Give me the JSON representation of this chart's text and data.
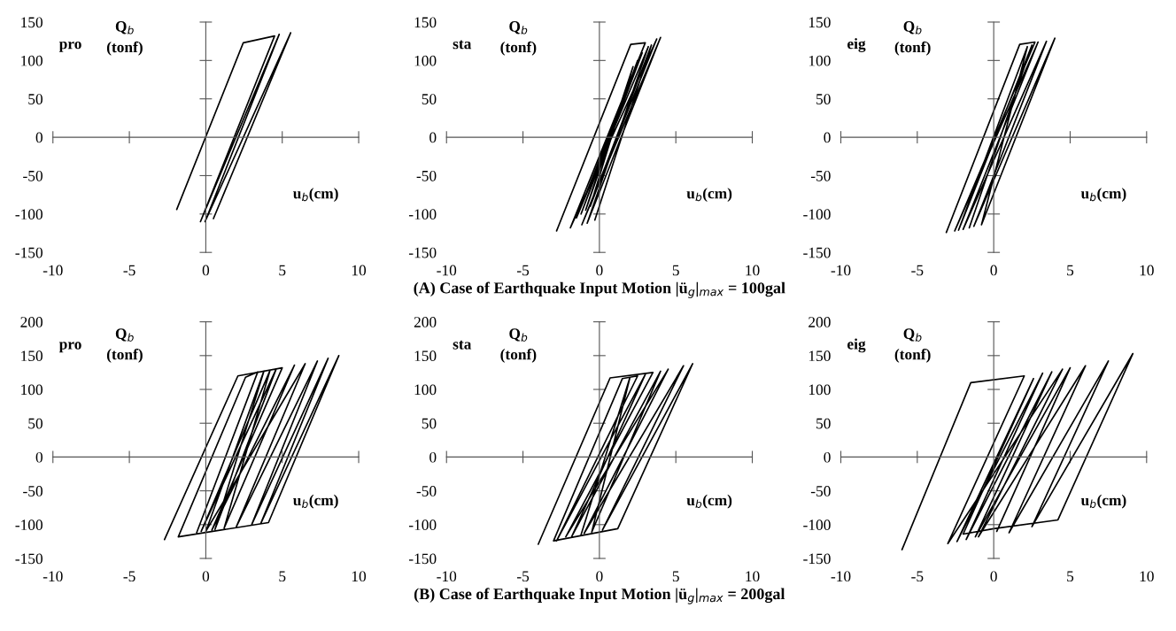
{
  "chart_data": [
    {
      "type": "line",
      "title": "pro",
      "xlabel": "u$_{b}$(cm)",
      "ylabel": "Q$_{b}$\n(tonf)",
      "xlim": [
        -10,
        10
      ],
      "ylim": [
        -150,
        150
      ],
      "xticks": [
        -10,
        -5,
        0,
        5,
        10
      ],
      "yticks": [
        -150,
        -100,
        -50,
        0,
        50,
        100,
        150
      ],
      "marker": "none",
      "line_style": "solid",
      "series": [
        {
          "color": "#000000",
          "x": [
            -1.9,
            2.45,
            4.5,
            -0.35,
            4.8,
            -0.05,
            5.55,
            0.5
          ],
          "values": [
            -94,
            123,
            132,
            -110,
            134,
            -110,
            136,
            -106
          ]
        }
      ]
    },
    {
      "type": "line",
      "title": "sta",
      "xlabel": "u$_{b}$(cm)",
      "ylabel": "Q$_{b}$\n(tonf)",
      "xlim": [
        -10,
        10
      ],
      "ylim": [
        -150,
        150
      ],
      "xticks": [
        -10,
        -5,
        0,
        5,
        10
      ],
      "yticks": [
        -150,
        -100,
        -50,
        0,
        50,
        100,
        150
      ],
      "marker": "none",
      "line_style": "solid",
      "annotations": [
        "(A) Case of Earthquake Input Motion |ü$_{g}$|$_{max}$ = 100gal"
      ],
      "series": [
        {
          "color": "#000000",
          "x": [
            -2.8,
            2.05,
            3.0,
            -1.9,
            3.75,
            -1.15,
            4.0,
            -0.8,
            3.2,
            -1.5,
            2.8,
            -1.2,
            2.5,
            -0.9,
            2.2,
            -0.6,
            3.4,
            -0.3
          ],
          "values": [
            -122,
            121,
            123,
            -118,
            128,
            -114,
            130,
            -112,
            118,
            -105,
            110,
            -100,
            100,
            -95,
            92,
            -90,
            120,
            -108
          ]
        }
      ]
    },
    {
      "type": "line",
      "title": "eig",
      "xlabel": "u$_{b}$(cm)",
      "ylabel": "Q$_{b}$\n(tonf)",
      "xlim": [
        -10,
        10
      ],
      "ylim": [
        -150,
        150
      ],
      "xticks": [
        -10,
        -5,
        0,
        5,
        10
      ],
      "yticks": [
        -150,
        -100,
        -50,
        0,
        50,
        100,
        150
      ],
      "marker": "none",
      "line_style": "solid",
      "series": [
        {
          "color": "#000000",
          "x": [
            -3.1,
            1.7,
            2.7,
            -2.55,
            2.9,
            -2.0,
            3.45,
            -1.3,
            4.0,
            -0.8,
            2.2,
            -2.3,
            2.5,
            -1.6
          ],
          "values": [
            -124,
            121,
            124,
            -122,
            124,
            -120,
            125,
            -116,
            129,
            -114,
            118,
            -121,
            120,
            -118
          ]
        }
      ]
    },
    {
      "type": "line",
      "title": "pro",
      "xlabel": "u$_{b}$(cm)",
      "ylabel": "Q$_{b}$\n(tonf)",
      "xlim": [
        -10,
        10
      ],
      "ylim": [
        -150,
        200
      ],
      "xticks": [
        -10,
        -5,
        0,
        5,
        10
      ],
      "yticks": [
        -150,
        -100,
        -50,
        0,
        50,
        100,
        150,
        200
      ],
      "marker": "none",
      "line_style": "solid",
      "series": [
        {
          "color": "#000000",
          "x": [
            -2.7,
            2.1,
            5.0,
            0.4,
            5.8,
            1.2,
            4.2,
            -0.3,
            4.6,
            0.6,
            3.8,
            0.0,
            6.5,
            2.0,
            7.3,
            3.0,
            8.0,
            3.6,
            8.7,
            4.1,
            -1.8,
            2.6,
            3.4,
            -0.6
          ],
          "values": [
            -122,
            120,
            132,
            -108,
            136,
            -105,
            128,
            -110,
            130,
            -107,
            127,
            -110,
            138,
            -103,
            142,
            -100,
            146,
            -98,
            150,
            -97,
            -118,
            118,
            126,
            -112
          ]
        }
      ]
    },
    {
      "type": "line",
      "title": "sta",
      "xlabel": "u$_{b}$(cm)",
      "ylabel": "Q$_{b}$\n(tonf)",
      "xlim": [
        -10,
        10
      ],
      "ylim": [
        -150,
        200
      ],
      "xticks": [
        -10,
        -5,
        0,
        5,
        10
      ],
      "yticks": [
        -150,
        -100,
        -50,
        0,
        50,
        100,
        150,
        200
      ],
      "marker": "none",
      "line_style": "solid",
      "annotations": [
        "(B) Case of Earthquake Input Motion |ü$_{g}$|$_{max}$ = 200gal"
      ],
      "series": [
        {
          "color": "#000000",
          "x": [
            -4.0,
            0.7,
            3.5,
            -2.2,
            4.5,
            -1.0,
            5.5,
            0.2,
            6.1,
            1.2,
            -3.0,
            1.5,
            2.5,
            -2.8,
            3.0,
            -1.8,
            4.0,
            -0.5,
            2.0,
            -1.2
          ],
          "values": [
            -129,
            117,
            125,
            -118,
            130,
            -113,
            135,
            -108,
            138,
            -106,
            -124,
            116,
            120,
            -124,
            122,
            -117,
            127,
            -111,
            118,
            -115
          ]
        }
      ]
    },
    {
      "type": "line",
      "title": "eig",
      "xlabel": "u$_{b}$(cm)",
      "ylabel": "Q$_{b}$\n(tonf)",
      "xlim": [
        -10,
        10
      ],
      "ylim": [
        -150,
        200
      ],
      "xticks": [
        -10,
        -5,
        0,
        5,
        10
      ],
      "yticks": [
        -150,
        -100,
        -50,
        0,
        50,
        100,
        150,
        200
      ],
      "marker": "none",
      "line_style": "solid",
      "series": [
        {
          "color": "#000000",
          "x": [
            -6.0,
            -1.5,
            2.0,
            -3.0,
            4.5,
            -1.0,
            6.0,
            1.0,
            7.5,
            2.5,
            9.1,
            4.2,
            0.0,
            -2.0,
            2.6,
            -2.4,
            3.2,
            -1.8,
            3.8,
            -1.2,
            5.0,
            0.2
          ],
          "values": [
            -137,
            110,
            120,
            -128,
            130,
            -118,
            135,
            -112,
            142,
            -103,
            153,
            -93,
            -106,
            -114,
            116,
            -125,
            124,
            -122,
            126,
            -118,
            132,
            -110
          ]
        }
      ]
    }
  ]
}
